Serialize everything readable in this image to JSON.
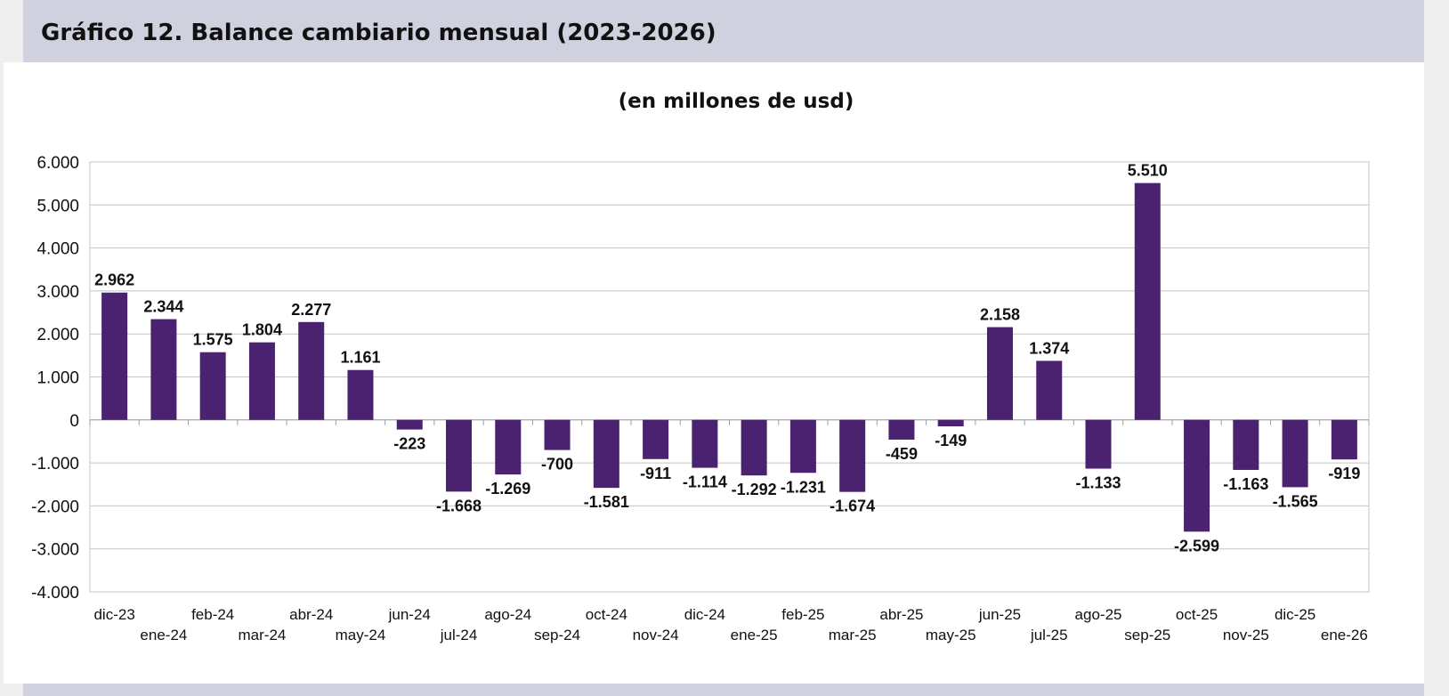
{
  "header": {
    "title": "Gráfico 12. Balance cambiario mensual (2023-2026)"
  },
  "chart_data": {
    "type": "bar",
    "title": "Gráfico 12. Balance cambiario mensual (2023-2026)",
    "subtitle": "(en millones de usd)",
    "xlabel": "",
    "ylabel": "",
    "ylim": [
      -4000,
      6000
    ],
    "ytick_values": [
      6000,
      5000,
      4000,
      3000,
      2000,
      1000,
      0,
      -1000,
      -2000,
      -3000,
      -4000
    ],
    "ytick_labels": [
      "6.000",
      "5.000",
      "4.000",
      "3.000",
      "2.000",
      "1.000",
      "0",
      "-1.000",
      "-2.000",
      "-3.000",
      "-4.000"
    ],
    "grid": true,
    "legend": "none",
    "bar_color": "#4a2270",
    "categories": [
      "dic-23",
      "ene-24",
      "feb-24",
      "mar-24",
      "abr-24",
      "may-24",
      "jun-24",
      "jul-24",
      "ago-24",
      "sep-24",
      "oct-24",
      "nov-24",
      "dic-24",
      "ene-25",
      "feb-25",
      "mar-25",
      "abr-25",
      "may-25",
      "jun-25",
      "jul-25",
      "ago-25",
      "sep-25",
      "oct-25",
      "nov-25",
      "dic-25",
      "ene-26"
    ],
    "values": [
      2962,
      2344,
      1575,
      1804,
      2277,
      1161,
      -223,
      -1668,
      -1269,
      -700,
      -1581,
      -911,
      -1114,
      -1292,
      -1231,
      -1674,
      -459,
      -149,
      2158,
      1374,
      -1133,
      5510,
      -2599,
      -1163,
      -1565,
      -919
    ],
    "data_labels": [
      "2.962",
      "2.344",
      "1.575",
      "1.804",
      "2.277",
      "1.161",
      "-223",
      "-1.668",
      "-1.269",
      "-700",
      "-1.581",
      "-911",
      "-1.114",
      "-1.292",
      "-1.231",
      "-1.674",
      "-459",
      "-149",
      "2.158",
      "1.374",
      "-1.133",
      "5.510",
      "-2.599",
      "-1.163",
      "-1.565",
      "-919"
    ]
  }
}
